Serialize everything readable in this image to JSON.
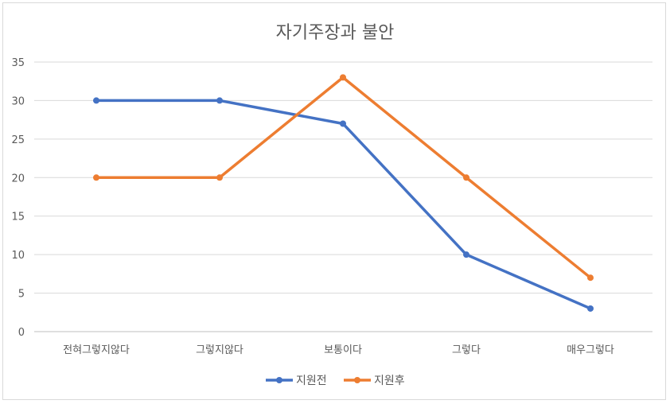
{
  "chart_data": {
    "type": "line",
    "title": "자기주장과 불안",
    "categories": [
      "전혀그렇지않다",
      "그렇지않다",
      "보통이다",
      "그렇다",
      "매우그렇다"
    ],
    "series": [
      {
        "name": "지원전",
        "values": [
          30,
          30,
          27,
          10,
          3
        ],
        "color": "#4472c4"
      },
      {
        "name": "지원후",
        "values": [
          20,
          20,
          33,
          20,
          7
        ],
        "color": "#ed7d31"
      }
    ],
    "ylim": [
      0,
      35
    ],
    "yticks": [
      0,
      5,
      10,
      15,
      20,
      25,
      30,
      35
    ],
    "grid": true,
    "legend": "bottom"
  }
}
